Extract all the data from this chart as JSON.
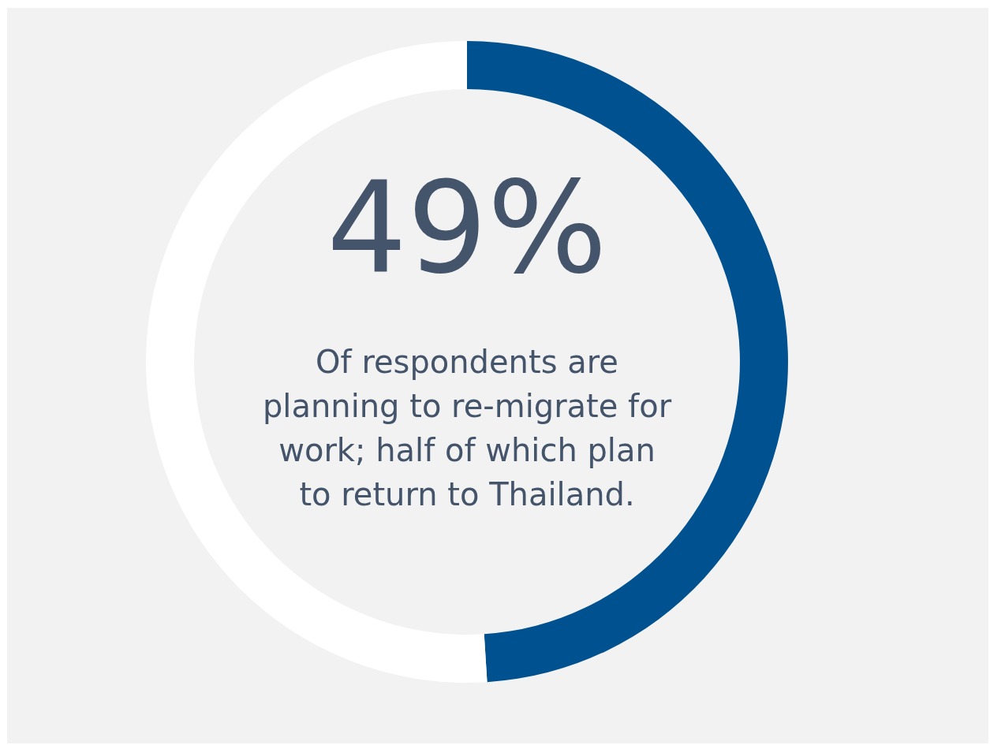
{
  "chart_data": {
    "type": "donut",
    "categories": [
      null,
      null
    ],
    "values": [
      49,
      51
    ],
    "colors": [
      "#00518f",
      "#ffffff"
    ],
    "value_labels": [
      "49%",
      null
    ],
    "legend": false,
    "annotations": [
      "Of respondents are planning to re-migrate for work; half of which plan to return to Thailand."
    ]
  }
}
